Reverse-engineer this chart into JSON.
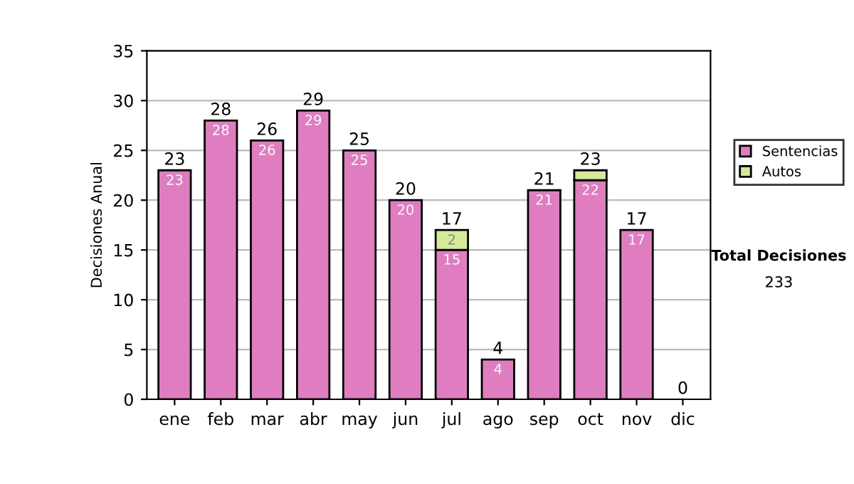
{
  "chart_data": {
    "type": "bar",
    "stacked": true,
    "ylabel": "Decisiones Anual",
    "categories": [
      "ene",
      "feb",
      "mar",
      "abr",
      "may",
      "jun",
      "jul",
      "ago",
      "sep",
      "oct",
      "nov",
      "dic"
    ],
    "series": [
      {
        "name": "Sentencias",
        "color": "#e07cc0",
        "values": [
          23,
          28,
          26,
          29,
          25,
          20,
          15,
          4,
          21,
          22,
          17,
          0
        ],
        "value_labels": [
          "23",
          "28",
          "26",
          "29",
          "25",
          "20",
          "15",
          "4",
          "21",
          "22",
          "17",
          null
        ]
      },
      {
        "name": "Autos",
        "color": "#d4ea98",
        "values": [
          0,
          0,
          0,
          0,
          0,
          0,
          2,
          0,
          0,
          1,
          0,
          0
        ],
        "value_labels": [
          null,
          null,
          null,
          null,
          null,
          null,
          "2",
          null,
          null,
          null,
          null,
          null
        ]
      }
    ],
    "totals": [
      "23",
      "28",
      "26",
      "29",
      "25",
      "20",
      "17",
      "4",
      "21",
      "23",
      "17",
      "0"
    ],
    "ylim": [
      0,
      35
    ],
    "yticks": [
      0,
      5,
      10,
      15,
      20,
      25,
      30,
      35
    ],
    "grid": "y",
    "legend": "right",
    "annotations": [
      "Total Decisiones",
      "233"
    ]
  }
}
